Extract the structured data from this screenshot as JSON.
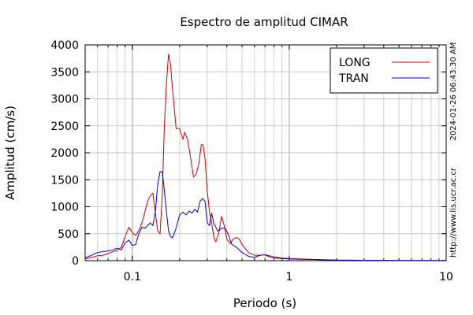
{
  "chart_data": {
    "type": "line",
    "title": "Espectro de amplitud CIMAR",
    "xlabel": "Periodo (s)",
    "ylabel": "Amplitud (cm/s)",
    "x_scale": "log",
    "xlim": [
      0.05,
      10
    ],
    "ylim": [
      0,
      4000
    ],
    "x_ticks": [
      {
        "value": 0.1,
        "label": "0.1"
      },
      {
        "value": 1,
        "label": "1"
      },
      {
        "value": 10,
        "label": "10"
      }
    ],
    "y_ticks": [
      0,
      500,
      1000,
      1500,
      2000,
      2500,
      3000,
      3500,
      4000
    ],
    "grid": true,
    "legend_position": "top-right",
    "side_annotations": [
      "2024-01-26 06:43:30 AM",
      "http://www.lis.ucr.ac.cr"
    ],
    "series": [
      {
        "name": "LONG",
        "color": "#cc0000",
        "points": [
          [
            0.05,
            30
          ],
          [
            0.055,
            60
          ],
          [
            0.06,
            90
          ],
          [
            0.065,
            100
          ],
          [
            0.07,
            130
          ],
          [
            0.075,
            170
          ],
          [
            0.08,
            190
          ],
          [
            0.085,
            250
          ],
          [
            0.09,
            450
          ],
          [
            0.095,
            620
          ],
          [
            0.1,
            520
          ],
          [
            0.105,
            470
          ],
          [
            0.11,
            560
          ],
          [
            0.115,
            700
          ],
          [
            0.12,
            900
          ],
          [
            0.125,
            1100
          ],
          [
            0.13,
            1200
          ],
          [
            0.135,
            1250
          ],
          [
            0.14,
            900
          ],
          [
            0.145,
            550
          ],
          [
            0.15,
            500
          ],
          [
            0.155,
            1200
          ],
          [
            0.16,
            2500
          ],
          [
            0.165,
            3300
          ],
          [
            0.17,
            3830
          ],
          [
            0.175,
            3650
          ],
          [
            0.18,
            3200
          ],
          [
            0.19,
            2450
          ],
          [
            0.2,
            2450
          ],
          [
            0.21,
            2250
          ],
          [
            0.215,
            2380
          ],
          [
            0.225,
            2250
          ],
          [
            0.235,
            1900
          ],
          [
            0.245,
            1550
          ],
          [
            0.255,
            1600
          ],
          [
            0.265,
            1800
          ],
          [
            0.275,
            2150
          ],
          [
            0.282,
            2150
          ],
          [
            0.29,
            1900
          ],
          [
            0.3,
            1300
          ],
          [
            0.31,
            900
          ],
          [
            0.32,
            700
          ],
          [
            0.33,
            450
          ],
          [
            0.34,
            350
          ],
          [
            0.355,
            500
          ],
          [
            0.37,
            820
          ],
          [
            0.385,
            650
          ],
          [
            0.4,
            400
          ],
          [
            0.42,
            320
          ],
          [
            0.44,
            400
          ],
          [
            0.46,
            430
          ],
          [
            0.48,
            400
          ],
          [
            0.5,
            300
          ],
          [
            0.55,
            150
          ],
          [
            0.6,
            100
          ],
          [
            0.65,
            100
          ],
          [
            0.7,
            110
          ],
          [
            0.75,
            90
          ],
          [
            0.8,
            70
          ],
          [
            0.9,
            50
          ],
          [
            1,
            40
          ],
          [
            1.2,
            30
          ],
          [
            1.5,
            20
          ],
          [
            2,
            12
          ],
          [
            3,
            8
          ],
          [
            5,
            5
          ],
          [
            10,
            3
          ]
        ]
      },
      {
        "name": "TRAN",
        "color": "#0000cc",
        "points": [
          [
            0.05,
            50
          ],
          [
            0.055,
            100
          ],
          [
            0.06,
            150
          ],
          [
            0.065,
            170
          ],
          [
            0.07,
            180
          ],
          [
            0.075,
            200
          ],
          [
            0.08,
            230
          ],
          [
            0.085,
            200
          ],
          [
            0.09,
            330
          ],
          [
            0.095,
            380
          ],
          [
            0.1,
            280
          ],
          [
            0.105,
            300
          ],
          [
            0.11,
            500
          ],
          [
            0.115,
            620
          ],
          [
            0.12,
            600
          ],
          [
            0.125,
            650
          ],
          [
            0.13,
            700
          ],
          [
            0.135,
            650
          ],
          [
            0.14,
            900
          ],
          [
            0.145,
            1400
          ],
          [
            0.15,
            1650
          ],
          [
            0.155,
            1650
          ],
          [
            0.16,
            1300
          ],
          [
            0.165,
            900
          ],
          [
            0.17,
            550
          ],
          [
            0.175,
            450
          ],
          [
            0.18,
            420
          ],
          [
            0.19,
            600
          ],
          [
            0.2,
            850
          ],
          [
            0.21,
            900
          ],
          [
            0.22,
            850
          ],
          [
            0.23,
            920
          ],
          [
            0.24,
            880
          ],
          [
            0.25,
            950
          ],
          [
            0.26,
            900
          ],
          [
            0.27,
            1100
          ],
          [
            0.28,
            1150
          ],
          [
            0.29,
            1100
          ],
          [
            0.3,
            700
          ],
          [
            0.31,
            650
          ],
          [
            0.32,
            880
          ],
          [
            0.33,
            700
          ],
          [
            0.35,
            550
          ],
          [
            0.37,
            600
          ],
          [
            0.39,
            600
          ],
          [
            0.41,
            480
          ],
          [
            0.43,
            300
          ],
          [
            0.46,
            250
          ],
          [
            0.5,
            150
          ],
          [
            0.55,
            80
          ],
          [
            0.6,
            60
          ],
          [
            0.65,
            100
          ],
          [
            0.7,
            110
          ],
          [
            0.75,
            70
          ],
          [
            0.8,
            50
          ],
          [
            0.9,
            40
          ],
          [
            1,
            30
          ],
          [
            1.2,
            25
          ],
          [
            1.5,
            20
          ],
          [
            2,
            10
          ],
          [
            3,
            7
          ],
          [
            5,
            5
          ],
          [
            10,
            3
          ]
        ]
      }
    ]
  }
}
